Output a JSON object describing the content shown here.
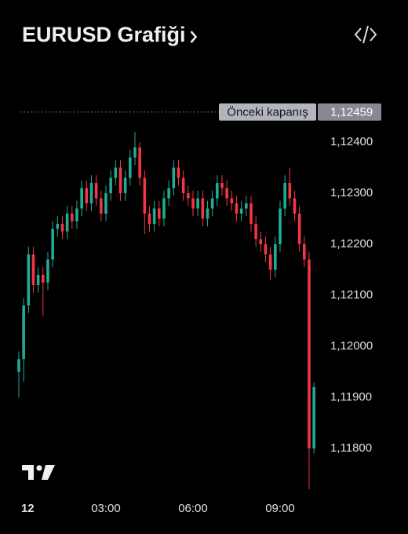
{
  "chart_data": {
    "type": "candlestick",
    "title": "EURUSD Grafiği",
    "x": [
      0,
      10,
      20,
      30,
      40,
      50,
      60,
      70,
      80,
      90,
      100,
      110,
      120,
      130,
      140,
      150,
      160,
      170,
      180,
      190,
      200,
      210,
      220,
      230,
      240,
      250,
      260,
      270,
      280,
      290,
      300,
      310,
      320,
      330,
      340,
      350,
      360,
      370,
      380,
      390,
      400,
      410,
      420,
      430,
      440,
      450,
      460,
      470,
      480,
      490,
      500,
      510,
      520,
      530,
      540,
      550,
      560,
      570,
      580,
      590,
      600,
      610
    ],
    "open": [
      1.1195,
      1.11975,
      1.1208,
      1.1218,
      1.1212,
      1.1214,
      1.12125,
      1.1217,
      1.1223,
      1.1224,
      1.12225,
      1.1226,
      1.12245,
      1.1227,
      1.1231,
      1.1228,
      1.1232,
      1.1229,
      1.1226,
      1.123,
      1.1233,
      1.1235,
      1.123,
      1.1233,
      1.1237,
      1.1239,
      1.1233,
      1.1226,
      1.1224,
      1.1227,
      1.1225,
      1.1229,
      1.1231,
      1.1235,
      1.1233,
      1.123,
      1.1229,
      1.1227,
      1.1229,
      1.1225,
      1.1227,
      1.1229,
      1.1232,
      1.1231,
      1.1229,
      1.1228,
      1.1226,
      1.1227,
      1.1228,
      1.1224,
      1.1221,
      1.122,
      1.1218,
      1.1215,
      1.122,
      1.1227,
      1.1232,
      1.1229,
      1.1226,
      1.122,
      1.1217,
      1.118
    ],
    "high": [
      1.1199,
      1.12095,
      1.12195,
      1.12195,
      1.12155,
      1.12155,
      1.12185,
      1.12245,
      1.12255,
      1.12255,
      1.12275,
      1.12275,
      1.12285,
      1.12325,
      1.12325,
      1.12335,
      1.12335,
      1.12305,
      1.12315,
      1.12345,
      1.12365,
      1.12365,
      1.12345,
      1.12385,
      1.1242,
      1.124,
      1.12345,
      1.12275,
      1.12285,
      1.12285,
      1.12305,
      1.12325,
      1.12365,
      1.12365,
      1.12345,
      1.12315,
      1.12305,
      1.12305,
      1.12305,
      1.12285,
      1.12305,
      1.12335,
      1.12335,
      1.12325,
      1.12305,
      1.12295,
      1.12285,
      1.12295,
      1.12295,
      1.12255,
      1.12225,
      1.12215,
      1.12195,
      1.12215,
      1.12285,
      1.12335,
      1.1235,
      1.12305,
      1.12275,
      1.12215,
      1.12185,
      1.1193
    ],
    "low": [
      1.119,
      1.1193,
      1.12065,
      1.12105,
      1.12105,
      1.1206,
      1.1211,
      1.12155,
      1.12215,
      1.1221,
      1.1221,
      1.1223,
      1.1223,
      1.12255,
      1.12265,
      1.12265,
      1.12275,
      1.12245,
      1.12245,
      1.12285,
      1.12315,
      1.12285,
      1.12285,
      1.12315,
      1.12355,
      1.12315,
      1.1222,
      1.12225,
      1.12225,
      1.12235,
      1.12235,
      1.12275,
      1.12295,
      1.12315,
      1.12285,
      1.12275,
      1.12255,
      1.12255,
      1.12235,
      1.12235,
      1.12255,
      1.12275,
      1.12295,
      1.12275,
      1.12265,
      1.12245,
      1.12245,
      1.12255,
      1.12225,
      1.12195,
      1.12185,
      1.12165,
      1.1213,
      1.12135,
      1.12185,
      1.12255,
      1.12275,
      1.12245,
      1.12185,
      1.12155,
      1.1172,
      1.1179
    ],
    "close": [
      1.11975,
      1.1208,
      1.1218,
      1.1212,
      1.1214,
      1.12125,
      1.1217,
      1.1223,
      1.1224,
      1.12225,
      1.1226,
      1.12245,
      1.1227,
      1.1231,
      1.1228,
      1.1232,
      1.1229,
      1.1226,
      1.123,
      1.1233,
      1.1235,
      1.123,
      1.1233,
      1.1237,
      1.1239,
      1.1233,
      1.1226,
      1.1224,
      1.1227,
      1.1225,
      1.1229,
      1.1231,
      1.1235,
      1.1233,
      1.123,
      1.1229,
      1.1227,
      1.1229,
      1.1225,
      1.1227,
      1.1229,
      1.1232,
      1.1231,
      1.1229,
      1.1228,
      1.1226,
      1.1227,
      1.1228,
      1.1224,
      1.1221,
      1.122,
      1.1218,
      1.1215,
      1.122,
      1.1227,
      1.1232,
      1.1229,
      1.1226,
      1.122,
      1.1217,
      1.118,
      1.1192
    ],
    "up_color": "#22ab94",
    "down_color": "#f23645",
    "xlim": [
      -5,
      620
    ],
    "xticks": [
      {
        "value": 0,
        "label": "12"
      },
      {
        "value": 180,
        "label": "03:00"
      },
      {
        "value": 360,
        "label": "06:00"
      },
      {
        "value": 540,
        "label": "09:00"
      }
    ],
    "ylim": [
      1.1171,
      1.1252
    ],
    "yticks": [
      {
        "value": 1.118,
        "label": "1,11800"
      },
      {
        "value": 1.119,
        "label": "1,11900"
      },
      {
        "value": 1.12,
        "label": "1,12000"
      },
      {
        "value": 1.121,
        "label": "1,12100"
      },
      {
        "value": 1.122,
        "label": "1,12200"
      },
      {
        "value": 1.123,
        "label": "1,12300"
      },
      {
        "value": 1.124,
        "label": "1,12400"
      }
    ],
    "reference_line": {
      "name": "Önceki kapanış",
      "value": 1.12459,
      "label": "1,12459"
    },
    "grid": false
  }
}
